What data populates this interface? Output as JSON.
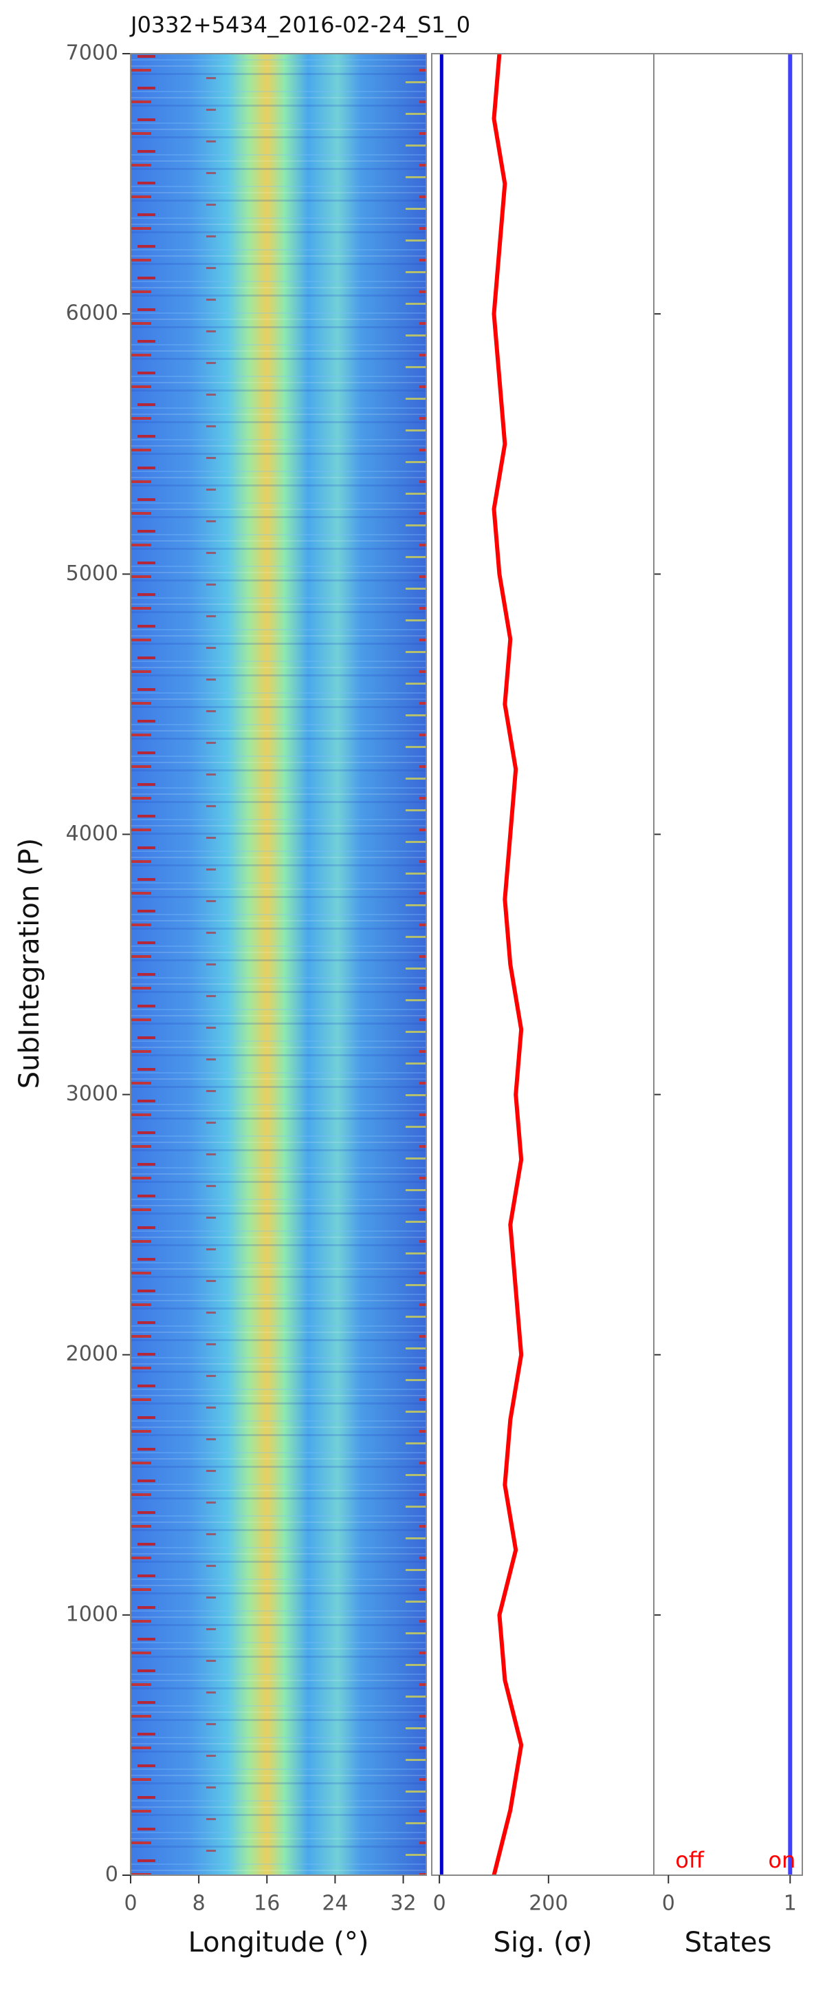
{
  "chart_data": [
    {
      "type": "heatmap",
      "title": "J0332+5434_2016-02-24_S1_0",
      "ylabel": "SubIntegration (P)",
      "xlabel": "Longitude (°)",
      "xlim": [
        0,
        34.7
      ],
      "xticks": [
        0,
        8,
        16,
        24,
        32
      ],
      "ylim": [
        0,
        7000
      ],
      "yticks": [
        0,
        1000,
        2000,
        3000,
        4000,
        5000,
        6000,
        7000
      ]
    },
    {
      "type": "line",
      "xlabel": "Sig. (σ)",
      "xlim": [
        -14,
        393
      ],
      "xticks": [
        0,
        200
      ],
      "ylim": [
        0,
        7000
      ],
      "y": [
        0,
        250,
        500,
        750,
        1000,
        1250,
        1500,
        1750,
        2000,
        2250,
        2500,
        2750,
        3000,
        3250,
        3500,
        3750,
        4000,
        4250,
        4500,
        4750,
        5000,
        5250,
        5500,
        5750,
        6000,
        6250,
        6500,
        6750,
        7000
      ],
      "series": [
        {
          "color": "#ff0000",
          "values": [
            100,
            130,
            150,
            120,
            110,
            140,
            120,
            130,
            150,
            140,
            130,
            150,
            140,
            150,
            130,
            120,
            130,
            140,
            120,
            130,
            110,
            100,
            120,
            110,
            100,
            110,
            120,
            100,
            110
          ]
        },
        {
          "color": "#0000cc",
          "values": [
            4,
            4,
            4,
            4,
            4,
            4,
            4,
            4,
            4,
            4,
            4,
            4,
            4,
            4,
            4,
            4,
            4,
            4,
            4,
            4,
            4,
            4,
            4,
            4,
            4,
            4,
            4,
            4,
            4
          ]
        }
      ]
    },
    {
      "type": "states",
      "xlabel": "States",
      "xlim": [
        -0.12,
        1.1
      ],
      "xticks": [
        0,
        1
      ],
      "ylim": [
        0,
        7000
      ],
      "annotations": [
        "off",
        "on"
      ],
      "y": [
        0,
        7000
      ],
      "series": [
        {
          "color": "#4040ff",
          "values": [
            1,
            1
          ]
        }
      ]
    }
  ]
}
